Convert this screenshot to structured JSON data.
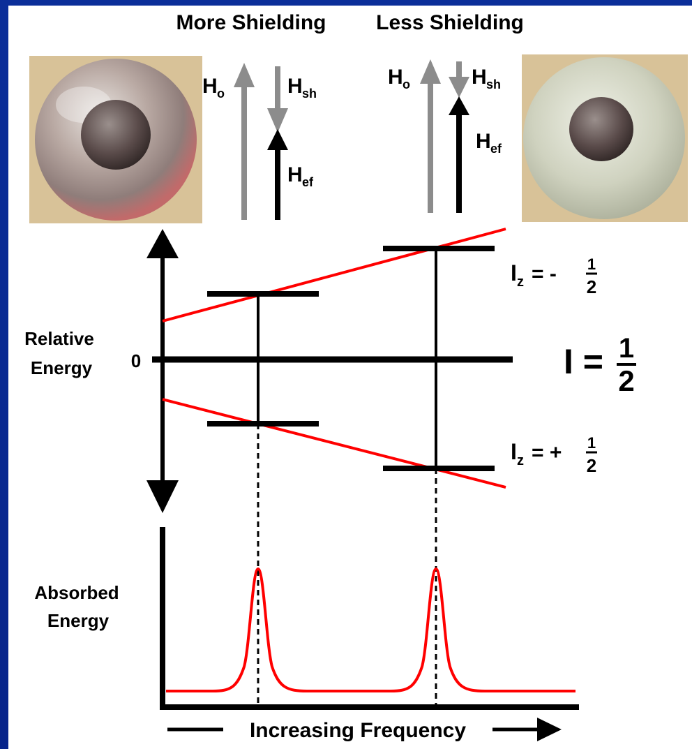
{
  "header": {
    "more_shielding": "More Shielding",
    "less_shielding": "Less Shielding"
  },
  "field_labels": {
    "applied": "H",
    "applied_sub": "o",
    "shielding": "H",
    "shielding_sub": "sh",
    "effective": "H",
    "effective_sub": "ef"
  },
  "axis": {
    "relative_energy_line1": "Relative",
    "relative_energy_line2": "Energy",
    "zero": "0",
    "absorbed_energy_line1": "Absorbed",
    "absorbed_energy_line2": "Energy",
    "frequency": "Increasing Frequency"
  },
  "spin_states": {
    "upper": "I",
    "upper_sub": "z",
    "upper_sign": "= -",
    "lower": "I",
    "lower_sub": "z",
    "lower_sign": "= +",
    "fraction_num": "1",
    "fraction_den": "2",
    "spin": "I ="
  },
  "colors": {
    "background": "#0a2a8f",
    "panel": "#ffffff",
    "line_black": "#000000",
    "line_red": "#ff0000",
    "arrow_gray": "#8c8c8c",
    "sphere_tan": "#d9c39a"
  }
}
